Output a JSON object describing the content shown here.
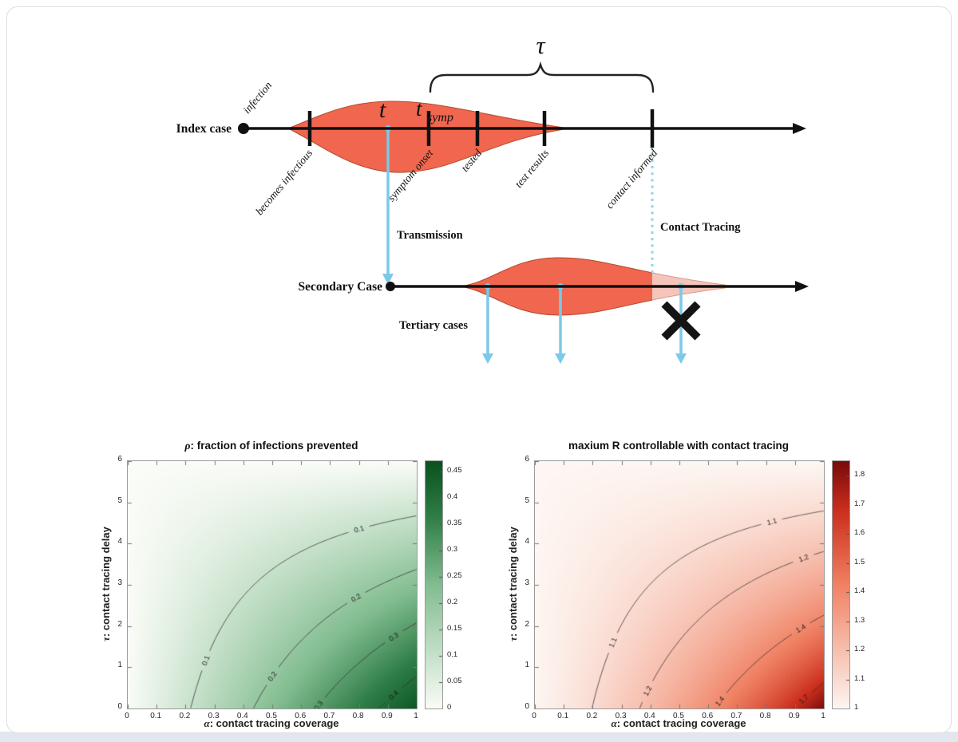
{
  "diagram": {
    "index_case_label": "Index case",
    "infection_label": "infection",
    "becomes_infectious_label": "becomes infectious",
    "symptom_onset_label": "symptom onset",
    "tested_label": "tested",
    "test_results_label": "test results",
    "contact_informed_label": "contact informed",
    "t_label": "t",
    "t_symp_main": "t",
    "t_symp_sub": "symp",
    "tau_label": "τ",
    "transmission_label": "Transmission",
    "contact_tracing_label": "Contact Tracing",
    "secondary_case_label": "Secondary Case",
    "tertiary_cases_label": "Tertiary cases",
    "colors": {
      "infectiousness_fill": "#f0664e",
      "infectiousness_stroke": "#b3492f",
      "prevented_fill": "#f5c5bb",
      "prevented_stroke": "#d89a8c",
      "trace_blue": "#7cc9e8",
      "axis_black": "#111111"
    }
  },
  "chart_data": [
    {
      "type": "heatmap",
      "title_symbol": "ρ",
      "title_rest": ": fraction of infections prevented",
      "xlabel_symbol": "α",
      "xlabel_rest": ": contact tracing coverage",
      "ylabel_symbol": "τ",
      "ylabel_rest": ": contact tracing delay",
      "xlim": [
        0,
        1
      ],
      "ylim": [
        0,
        6
      ],
      "x_ticks": [
        "0",
        "0.1",
        "0.2",
        "0.3",
        "0.4",
        "0.5",
        "0.6",
        "0.7",
        "0.8",
        "0.9",
        "1"
      ],
      "y_ticks": [
        "0",
        "1",
        "2",
        "3",
        "4",
        "5",
        "6"
      ],
      "colorbar_ticks": [
        "0",
        "0.05",
        "0.1",
        "0.15",
        "0.2",
        "0.25",
        "0.3",
        "0.35",
        "0.4",
        "0.45"
      ],
      "colorbar_tick_values": [
        0,
        0.05,
        0.1,
        0.15,
        0.2,
        0.25,
        0.3,
        0.35,
        0.4,
        0.45
      ],
      "colorbar_range": [
        0,
        0.47
      ],
      "field": "rho",
      "model": {
        "base": 0.46,
        "decay": 0.077
      },
      "colormap_stops": [
        [
          0,
          "#fafcf7"
        ],
        [
          0.5,
          "#82bd90"
        ],
        [
          0.78,
          "#2e7d46"
        ],
        [
          1,
          "#0a5220"
        ]
      ],
      "contours": [
        {
          "label": "0.1",
          "level": 0.1,
          "x_at_tau0": 0.22,
          "tau_at_x1": 4.7,
          "label_alphas": [
            0.27,
            0.8
          ]
        },
        {
          "label": "0.2",
          "level": 0.2,
          "x_at_tau0": 0.43,
          "tau_at_x1": 3.4,
          "label_alphas": [
            0.5,
            0.79
          ]
        },
        {
          "label": "0.3",
          "level": 0.3,
          "x_at_tau0": 0.65,
          "tau_at_x1": 2.1,
          "label_alphas": [
            0.66,
            0.92
          ]
        },
        {
          "label": "0.4",
          "level": 0.4,
          "x_at_tau0": 0.87,
          "tau_at_x1": 0.8,
          "label_alphas": [
            0.92
          ]
        }
      ],
      "legend_position": "colorbar-right",
      "grid": false
    },
    {
      "type": "heatmap",
      "title_symbol": "",
      "title_rest": "maxium R controllable with contact tracing",
      "xlabel_symbol": "α",
      "xlabel_rest": ": contact tracing coverage",
      "ylabel_symbol": "τ",
      "ylabel_rest": ": contact tracing delay",
      "xlim": [
        0,
        1
      ],
      "ylim": [
        0,
        6
      ],
      "x_ticks": [
        "0",
        "0.1",
        "0.2",
        "0.3",
        "0.4",
        "0.5",
        "0.6",
        "0.7",
        "0.8",
        "0.9",
        "1"
      ],
      "y_ticks": [
        "0",
        "1",
        "2",
        "3",
        "4",
        "5",
        "6"
      ],
      "colorbar_ticks": [
        "1",
        "1.1",
        "1.2",
        "1.3",
        "1.4",
        "1.5",
        "1.6",
        "1.7",
        "1.8"
      ],
      "colorbar_tick_values": [
        1,
        1.1,
        1.2,
        1.3,
        1.4,
        1.5,
        1.6,
        1.7,
        1.8
      ],
      "colorbar_range": [
        1,
        1.85
      ],
      "field": "Rmax",
      "model": {
        "base": 0.46,
        "decay": 0.077
      },
      "colormap_stops": [
        [
          0,
          "#fdf6f2"
        ],
        [
          0.5,
          "#f08264"
        ],
        [
          0.8,
          "#cc2f1d"
        ],
        [
          1,
          "#7a0b0b"
        ]
      ],
      "contours": [
        {
          "label": "1.1",
          "level": 1.1,
          "x_at_tau0": 0.2,
          "tau_at_x1": 4.9,
          "label_alphas": [
            0.27,
            0.82
          ]
        },
        {
          "label": "1.2",
          "level": 1.2,
          "x_at_tau0": 0.36,
          "tau_at_x1": 3.8,
          "label_alphas": [
            0.39,
            0.93
          ]
        },
        {
          "label": "1.4",
          "level": 1.4,
          "x_at_tau0": 0.61,
          "tau_at_x1": 2.4,
          "label_alphas": [
            0.64,
            0.92
          ]
        },
        {
          "label": "1.7",
          "level": 1.7,
          "x_at_tau0": 0.87,
          "tau_at_x1": 1.0,
          "label_alphas": [
            0.93
          ]
        }
      ],
      "legend_position": "colorbar-right",
      "grid": false
    }
  ]
}
